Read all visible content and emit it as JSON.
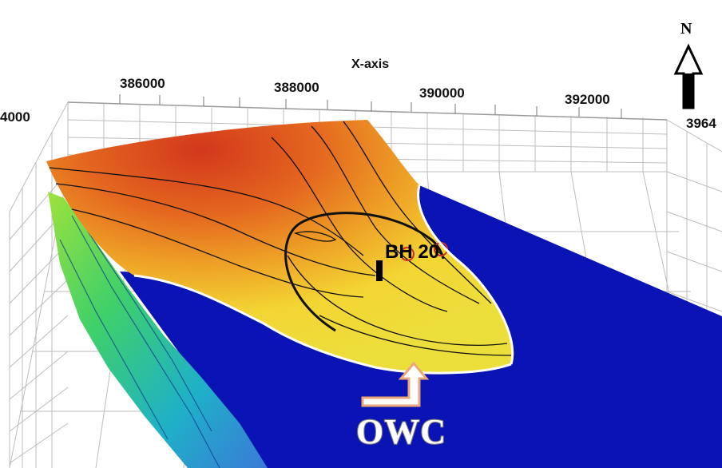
{
  "axis": {
    "title": "X-axis",
    "x_ticks": [
      "386000",
      "388000",
      "390000",
      "392000"
    ],
    "left_tick": "4000",
    "right_tick": "3964"
  },
  "north_label": "N",
  "well_label": "BH 20",
  "contact_label": "OWC",
  "colors": {
    "water_zone": "#0a14b4",
    "surface_high": "#d2381c",
    "surface_mid": "#ee9a22",
    "surface_low": "#f1e83a",
    "flank_surface": "#35c96a",
    "contour": "#111111",
    "owc_arrow": "#e8a878",
    "grid": "#bfbfbf"
  }
}
